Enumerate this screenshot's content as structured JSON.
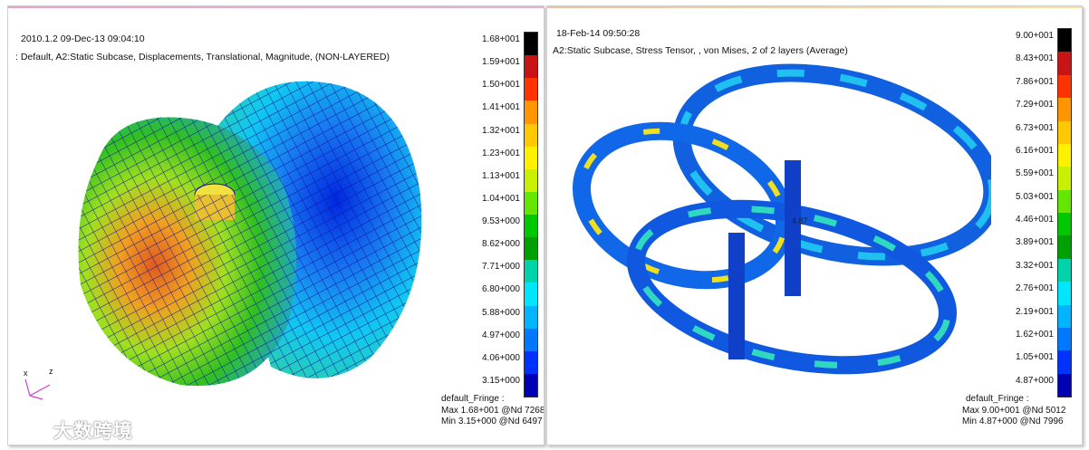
{
  "left_panel": {
    "header_line1": "2010.1.2 09-Dec-13 09:04:10",
    "header_line2": ": Default, A2:Static Subcase, Displacements, Translational, Magnitude, (NON-LAYERED)",
    "legend_values": [
      "1.68+001",
      "1.59+001",
      "1.50+001",
      "1.41+001",
      "1.32+001",
      "1.23+001",
      "1.13+001",
      "1.04+001",
      "9.53+000",
      "8.62+000",
      "7.71+000",
      "6.80+000",
      "5.88+000",
      "4.97+000",
      "4.06+000",
      "3.15+000"
    ],
    "fringe_title": "default_Fringe :",
    "fringe_max": "Max 1.68+001 @Nd 7268",
    "fringe_min": "Min 3.15+000 @Nd 6497",
    "axis_x": "x",
    "axis_z": "z"
  },
  "right_panel": {
    "header_line1": "18-Feb-14 09:50:28",
    "header_line2": "A2:Static Subcase, Stress Tensor, , von Mises, 2 of 2 layers (Average)",
    "legend_values": [
      "9.00+001",
      "8.43+001",
      "7.86+001",
      "7.29+001",
      "6.73+001",
      "6.16+001",
      "5.59+001",
      "5.03+001",
      "4.46+001",
      "3.89+001",
      "3.32+001",
      "2.76+001",
      "2.19+001",
      "1.62+001",
      "1.05+001",
      "4.87+000"
    ],
    "fringe_title": "default_Fringe :",
    "fringe_max": "Max 9.00+001 @Nd 5012",
    "fringe_min": "Min 4.87+000 @Nd 7996",
    "model_label": "4.87"
  },
  "legend_colors": [
    "#000000",
    "#c81414",
    "#ff3200",
    "#ff9600",
    "#ffc800",
    "#fff000",
    "#c8f000",
    "#64e600",
    "#00c800",
    "#00a000",
    "#00d2aa",
    "#00e6ff",
    "#00b4ff",
    "#0078ff",
    "#0032ff",
    "#0000b4"
  ],
  "watermark": "大数跨境"
}
